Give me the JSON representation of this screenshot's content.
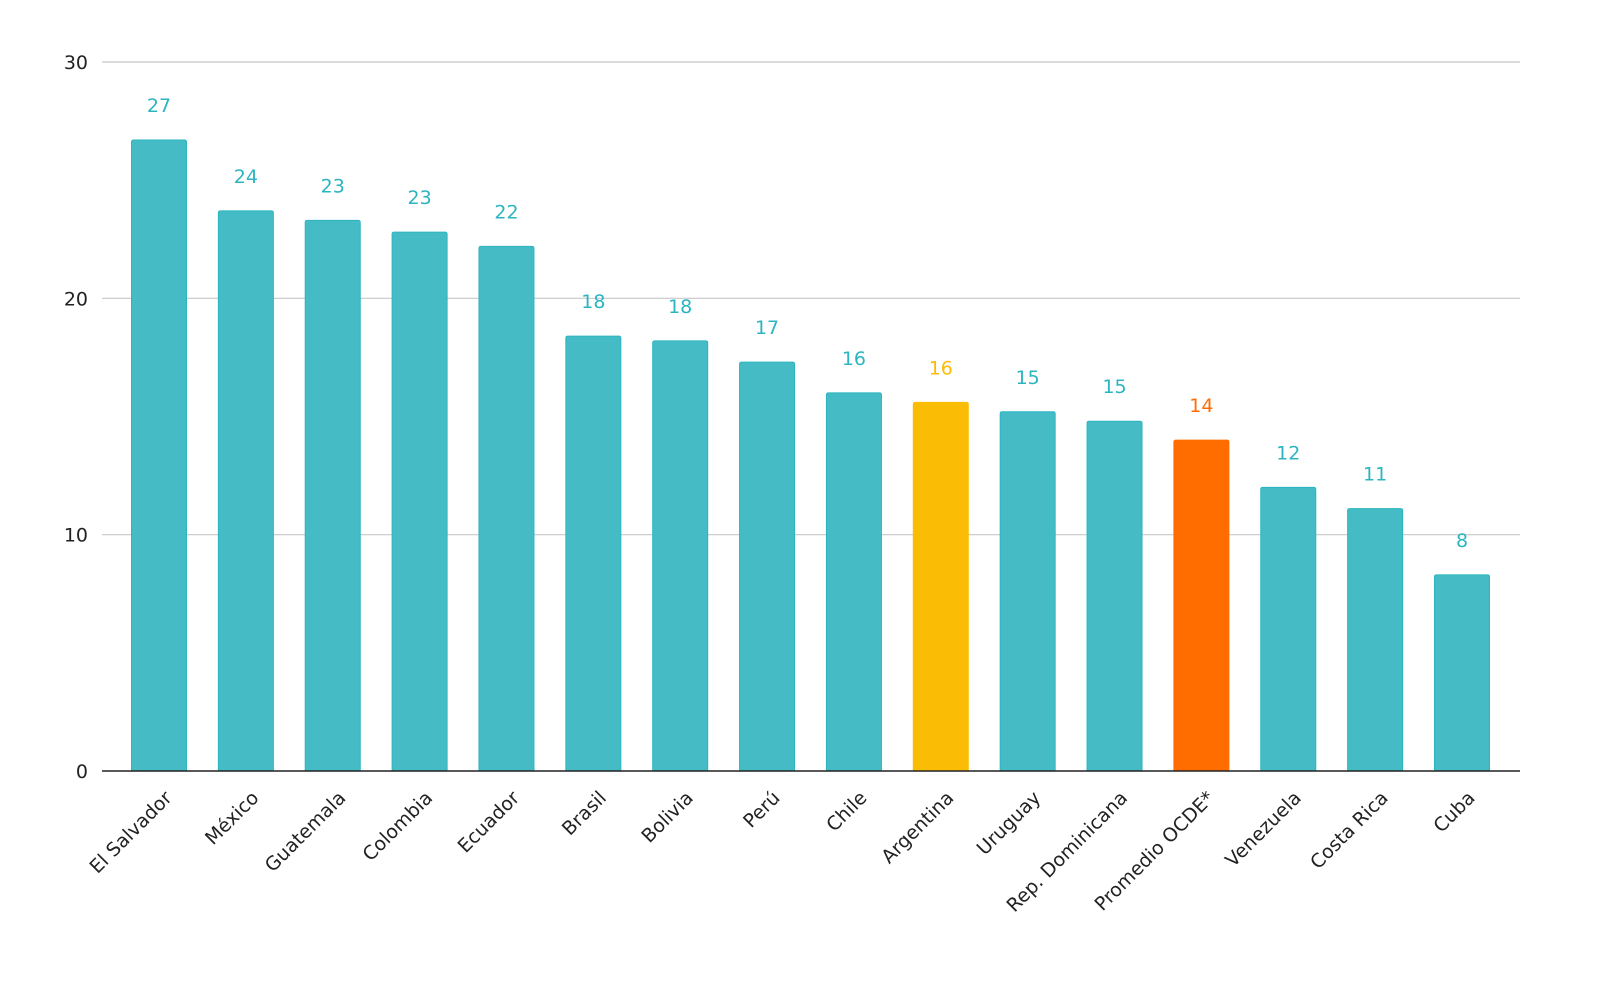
{
  "chart_data": {
    "type": "bar",
    "title": "",
    "xlabel": "",
    "ylabel": "",
    "ylim": [
      0,
      30
    ],
    "yticks": [
      0,
      10,
      20,
      30
    ],
    "grid": true,
    "categories": [
      "El Salvador",
      "México",
      "Guatemala",
      "Colombia",
      "Ecuador",
      "Brasil",
      "Bolivia",
      "Perú",
      "Chile",
      "Argentina",
      "Uruguay",
      "Rep. Dominicana",
      "Promedio OCDE*",
      "Venezuela",
      "Costa Rica",
      "Cuba"
    ],
    "values": [
      26.7,
      23.7,
      23.3,
      22.8,
      22.2,
      18.4,
      18.2,
      17.3,
      16.0,
      15.6,
      15.2,
      14.8,
      14.0,
      12.0,
      11.1,
      8.3
    ],
    "data_labels": [
      "27",
      "24",
      "23",
      "23",
      "22",
      "18",
      "18",
      "17",
      "16",
      "16",
      "15",
      "15",
      "14",
      "12",
      "11",
      "8"
    ],
    "colors": {
      "default": "#45BCC5",
      "default_label": "#2BB5C0",
      "highlight": {
        "Argentina": "#FBBC05",
        "Promedio OCDE*": "#FF6D01"
      }
    }
  }
}
